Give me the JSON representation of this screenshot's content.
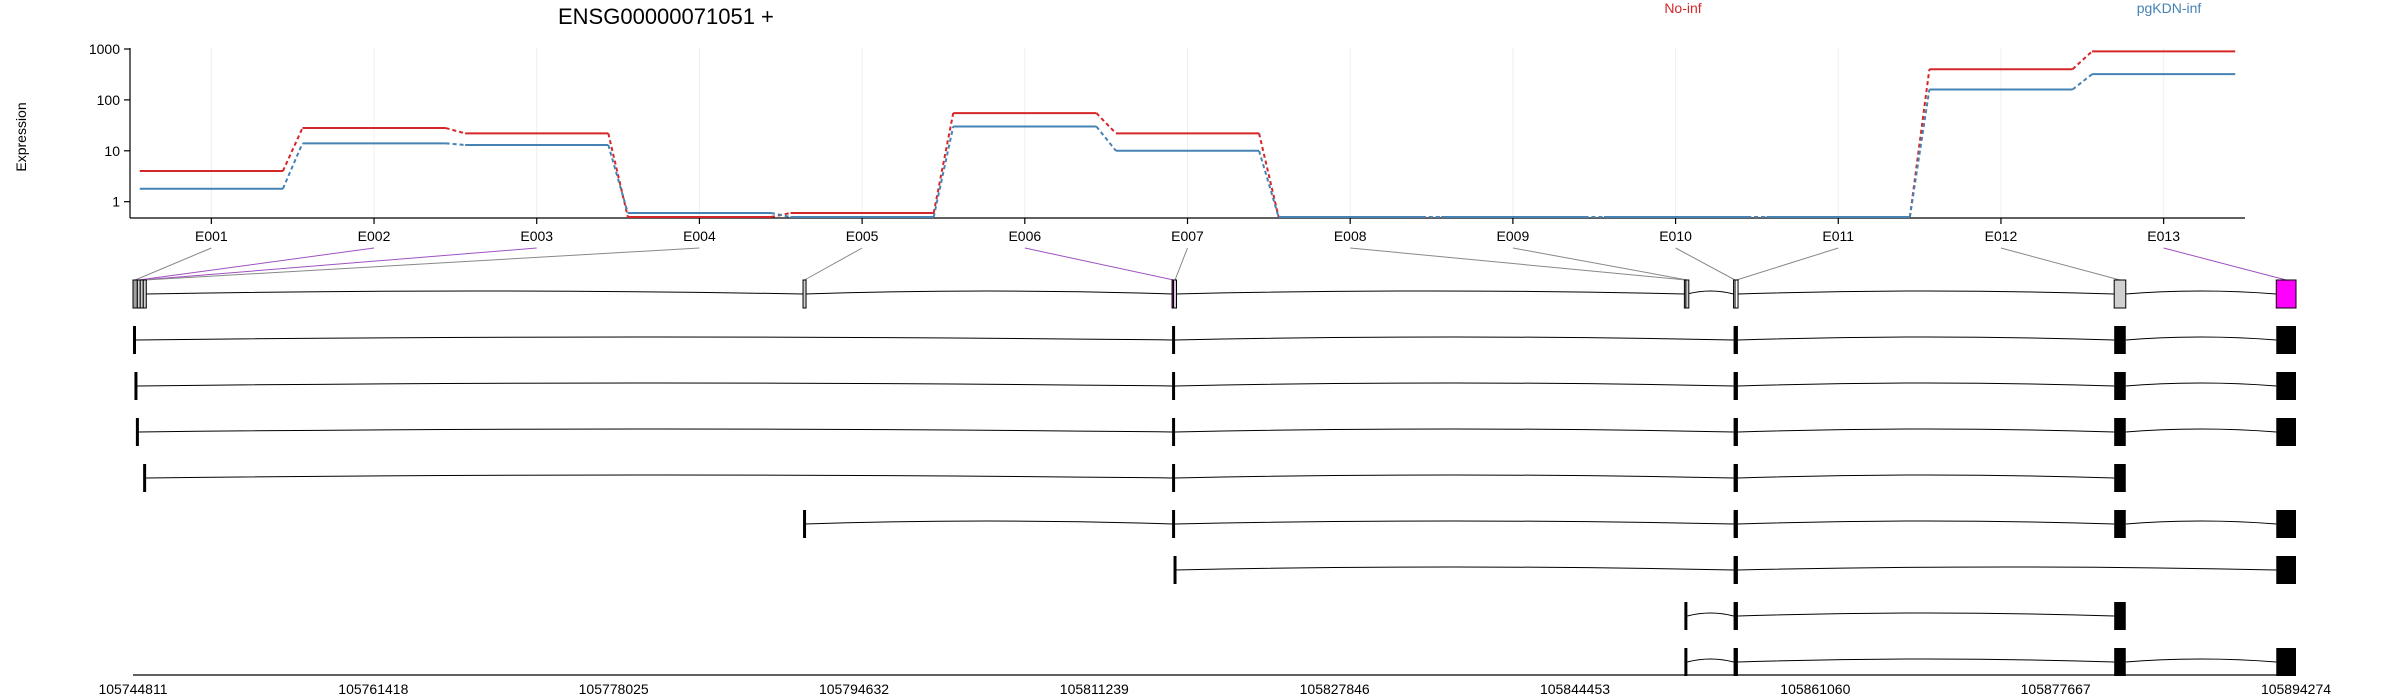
{
  "chart_data": {
    "type": "line",
    "title": "ENSG00000071051 +",
    "ylabel": "Expression",
    "yscale": "log",
    "ylim": [
      0.5,
      1000
    ],
    "yticks": [
      "1",
      "10",
      "100",
      "1000"
    ],
    "ytick_values": [
      1,
      10,
      100,
      1000
    ],
    "grid": "vertical",
    "legend_position": "top",
    "categories": [
      "E001",
      "E002",
      "E003",
      "E004",
      "E005",
      "E006",
      "E007",
      "E008",
      "E009",
      "E010",
      "E011",
      "E012",
      "E013"
    ],
    "series": [
      {
        "name": "No-inf",
        "color": "#d62728",
        "values": [
          4,
          28,
          22,
          0.5,
          0.6,
          55,
          22,
          0.5,
          0.5,
          0.5,
          0.5,
          400,
          900
        ]
      },
      {
        "name": "pgKDN-inf",
        "color": "#4682b4",
        "values": [
          1.8,
          14,
          13,
          0.6,
          0.5,
          30,
          10,
          0.5,
          0.5,
          0.5,
          0.5,
          160,
          320
        ]
      }
    ],
    "genomic_axis": {
      "labels": [
        "105744811",
        "105761418",
        "105778025",
        "105794632",
        "105811239",
        "105827846",
        "105844453",
        "105861060",
        "105877667",
        "105894274"
      ],
      "range": [
        105744811,
        105894274
      ]
    },
    "exons": [
      {
        "id": "E001",
        "start": 105744811,
        "end": 105745111,
        "fill": "#a0a0a0",
        "highlight": false
      },
      {
        "id": "E002",
        "start": 105745111,
        "end": 105745311,
        "fill": "#d0d0d0",
        "highlight": true
      },
      {
        "id": "E003",
        "start": 105745311,
        "end": 105745521,
        "fill": "#d0d0d0",
        "highlight": true
      },
      {
        "id": "E004",
        "start": 105745521,
        "end": 105745711,
        "fill": "#d0d0d0",
        "highlight": false
      },
      {
        "id": "E005",
        "start": 105791111,
        "end": 105791211,
        "fill": "#d0d0d0",
        "highlight": false
      },
      {
        "id": "E006",
        "start": 105816611,
        "end": 105816711,
        "fill": "#c000c0",
        "highlight": true
      },
      {
        "id": "E007",
        "start": 105816711,
        "end": 105816811,
        "fill": "#d0d0d0",
        "highlight": false
      },
      {
        "id": "E008",
        "start": 105852011,
        "end": 105852111,
        "fill": "#d0d0d0",
        "highlight": false
      },
      {
        "id": "E009",
        "start": 105852111,
        "end": 105852211,
        "fill": "#d0d0d0",
        "highlight": false
      },
      {
        "id": "E010",
        "start": 105855411,
        "end": 105855511,
        "fill": "#ffffff",
        "highlight": false
      },
      {
        "id": "E011",
        "start": 105855511,
        "end": 105855711,
        "fill": "#ffffff",
        "highlight": false
      },
      {
        "id": "E012",
        "start": 105881711,
        "end": 105882511,
        "fill": "#d0d0d0",
        "highlight": false
      },
      {
        "id": "E013",
        "start": 105892911,
        "end": 105894274,
        "fill": "#ff00ff",
        "highlight": true
      }
    ],
    "transcripts": [
      {
        "exons": [
          [
            105744811,
            105745011
          ],
          [
            105816611,
            105816811
          ],
          [
            105855411,
            105855711
          ],
          [
            105881711,
            105882511
          ],
          [
            105892911,
            105894274
          ]
        ]
      },
      {
        "exons": [
          [
            105744911,
            105745111
          ],
          [
            105816611,
            105816811
          ],
          [
            105855411,
            105855711
          ],
          [
            105881711,
            105882511
          ],
          [
            105892911,
            105894274
          ]
        ]
      },
      {
        "exons": [
          [
            105745011,
            105745211
          ],
          [
            105816611,
            105816811
          ],
          [
            105855411,
            105855711
          ],
          [
            105881711,
            105882511
          ],
          [
            105892911,
            105894274
          ]
        ]
      },
      {
        "exons": [
          [
            105745511,
            105745711
          ],
          [
            105816611,
            105816811
          ],
          [
            105855411,
            105855711
          ],
          [
            105881711,
            105882511
          ]
        ]
      },
      {
        "exons": [
          [
            105791111,
            105791211
          ],
          [
            105816611,
            105816811
          ],
          [
            105855411,
            105855711
          ],
          [
            105881711,
            105882511
          ],
          [
            105892911,
            105894274
          ]
        ]
      },
      {
        "exons": [
          [
            105816711,
            105816811
          ],
          [
            105855411,
            105855711
          ],
          [
            105892911,
            105894274
          ]
        ]
      },
      {
        "exons": [
          [
            105852011,
            105852211
          ],
          [
            105855411,
            105855711
          ],
          [
            105881711,
            105882511
          ]
        ]
      },
      {
        "exons": [
          [
            105852011,
            105852211
          ],
          [
            105855411,
            105855711
          ],
          [
            105881711,
            105882511
          ],
          [
            105892911,
            105894274
          ]
        ]
      }
    ]
  }
}
